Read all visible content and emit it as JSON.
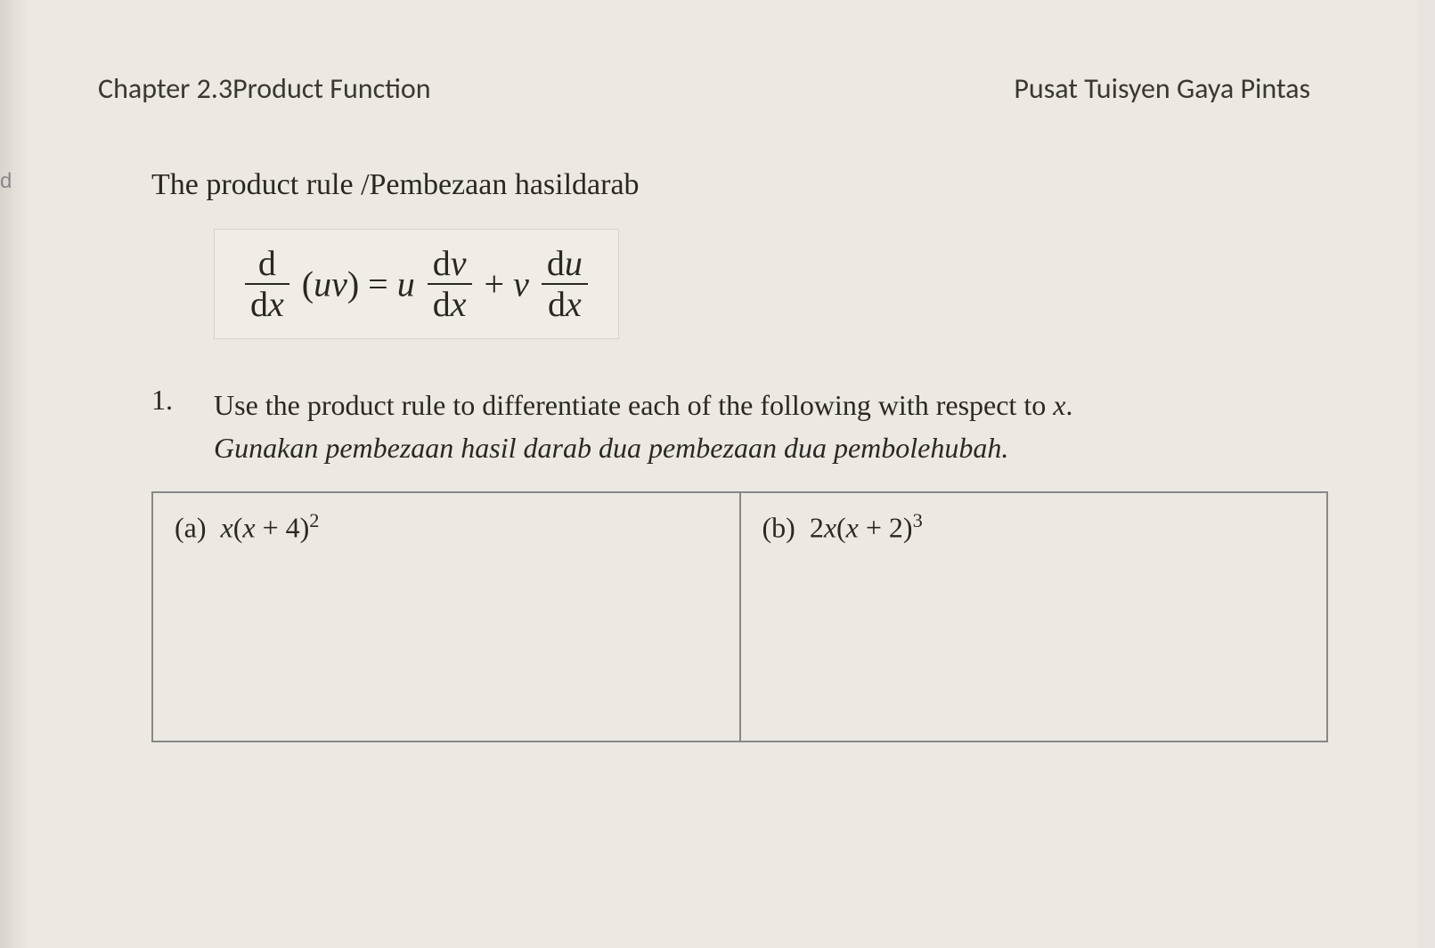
{
  "header": {
    "chapter_title": "Chapter 2.3Product Function",
    "institution": "Pusat Tuisyen Gaya Pintas"
  },
  "rule": {
    "title": "The product rule /Pembezaan hasildarab",
    "formula_plain": "d/dx (uv) = u dv/dx + v du/dx"
  },
  "question": {
    "number": "1.",
    "text_en": "Use the product rule to differentiate each of the following with respect to ",
    "text_en_var": "x",
    "text_en_end": ".",
    "text_my": "Gunakan pembezaan hasil darab dua pembezaan dua pembolehubah."
  },
  "table": {
    "columns": [
      "(a)",
      "(b)"
    ],
    "cells": [
      {
        "label": "(a)",
        "expr_prefix": "x",
        "expr_paren": "(x + 4)",
        "expr_power": "2"
      },
      {
        "label": "(b)",
        "expr_prefix": "2x",
        "expr_paren": "(x + 2)",
        "expr_power": "3"
      }
    ]
  },
  "styling": {
    "background_color": "#e8e4df",
    "page_color": "#ece8e2",
    "text_color": "#2a2824",
    "border_color": "#888888",
    "formula_bg": "#f0ede6",
    "body_font": "Times New Roman",
    "header_font": "Calibri",
    "title_fontsize": 32,
    "body_fontsize": 32,
    "formula_fontsize": 40
  },
  "left_tab_text": "d"
}
